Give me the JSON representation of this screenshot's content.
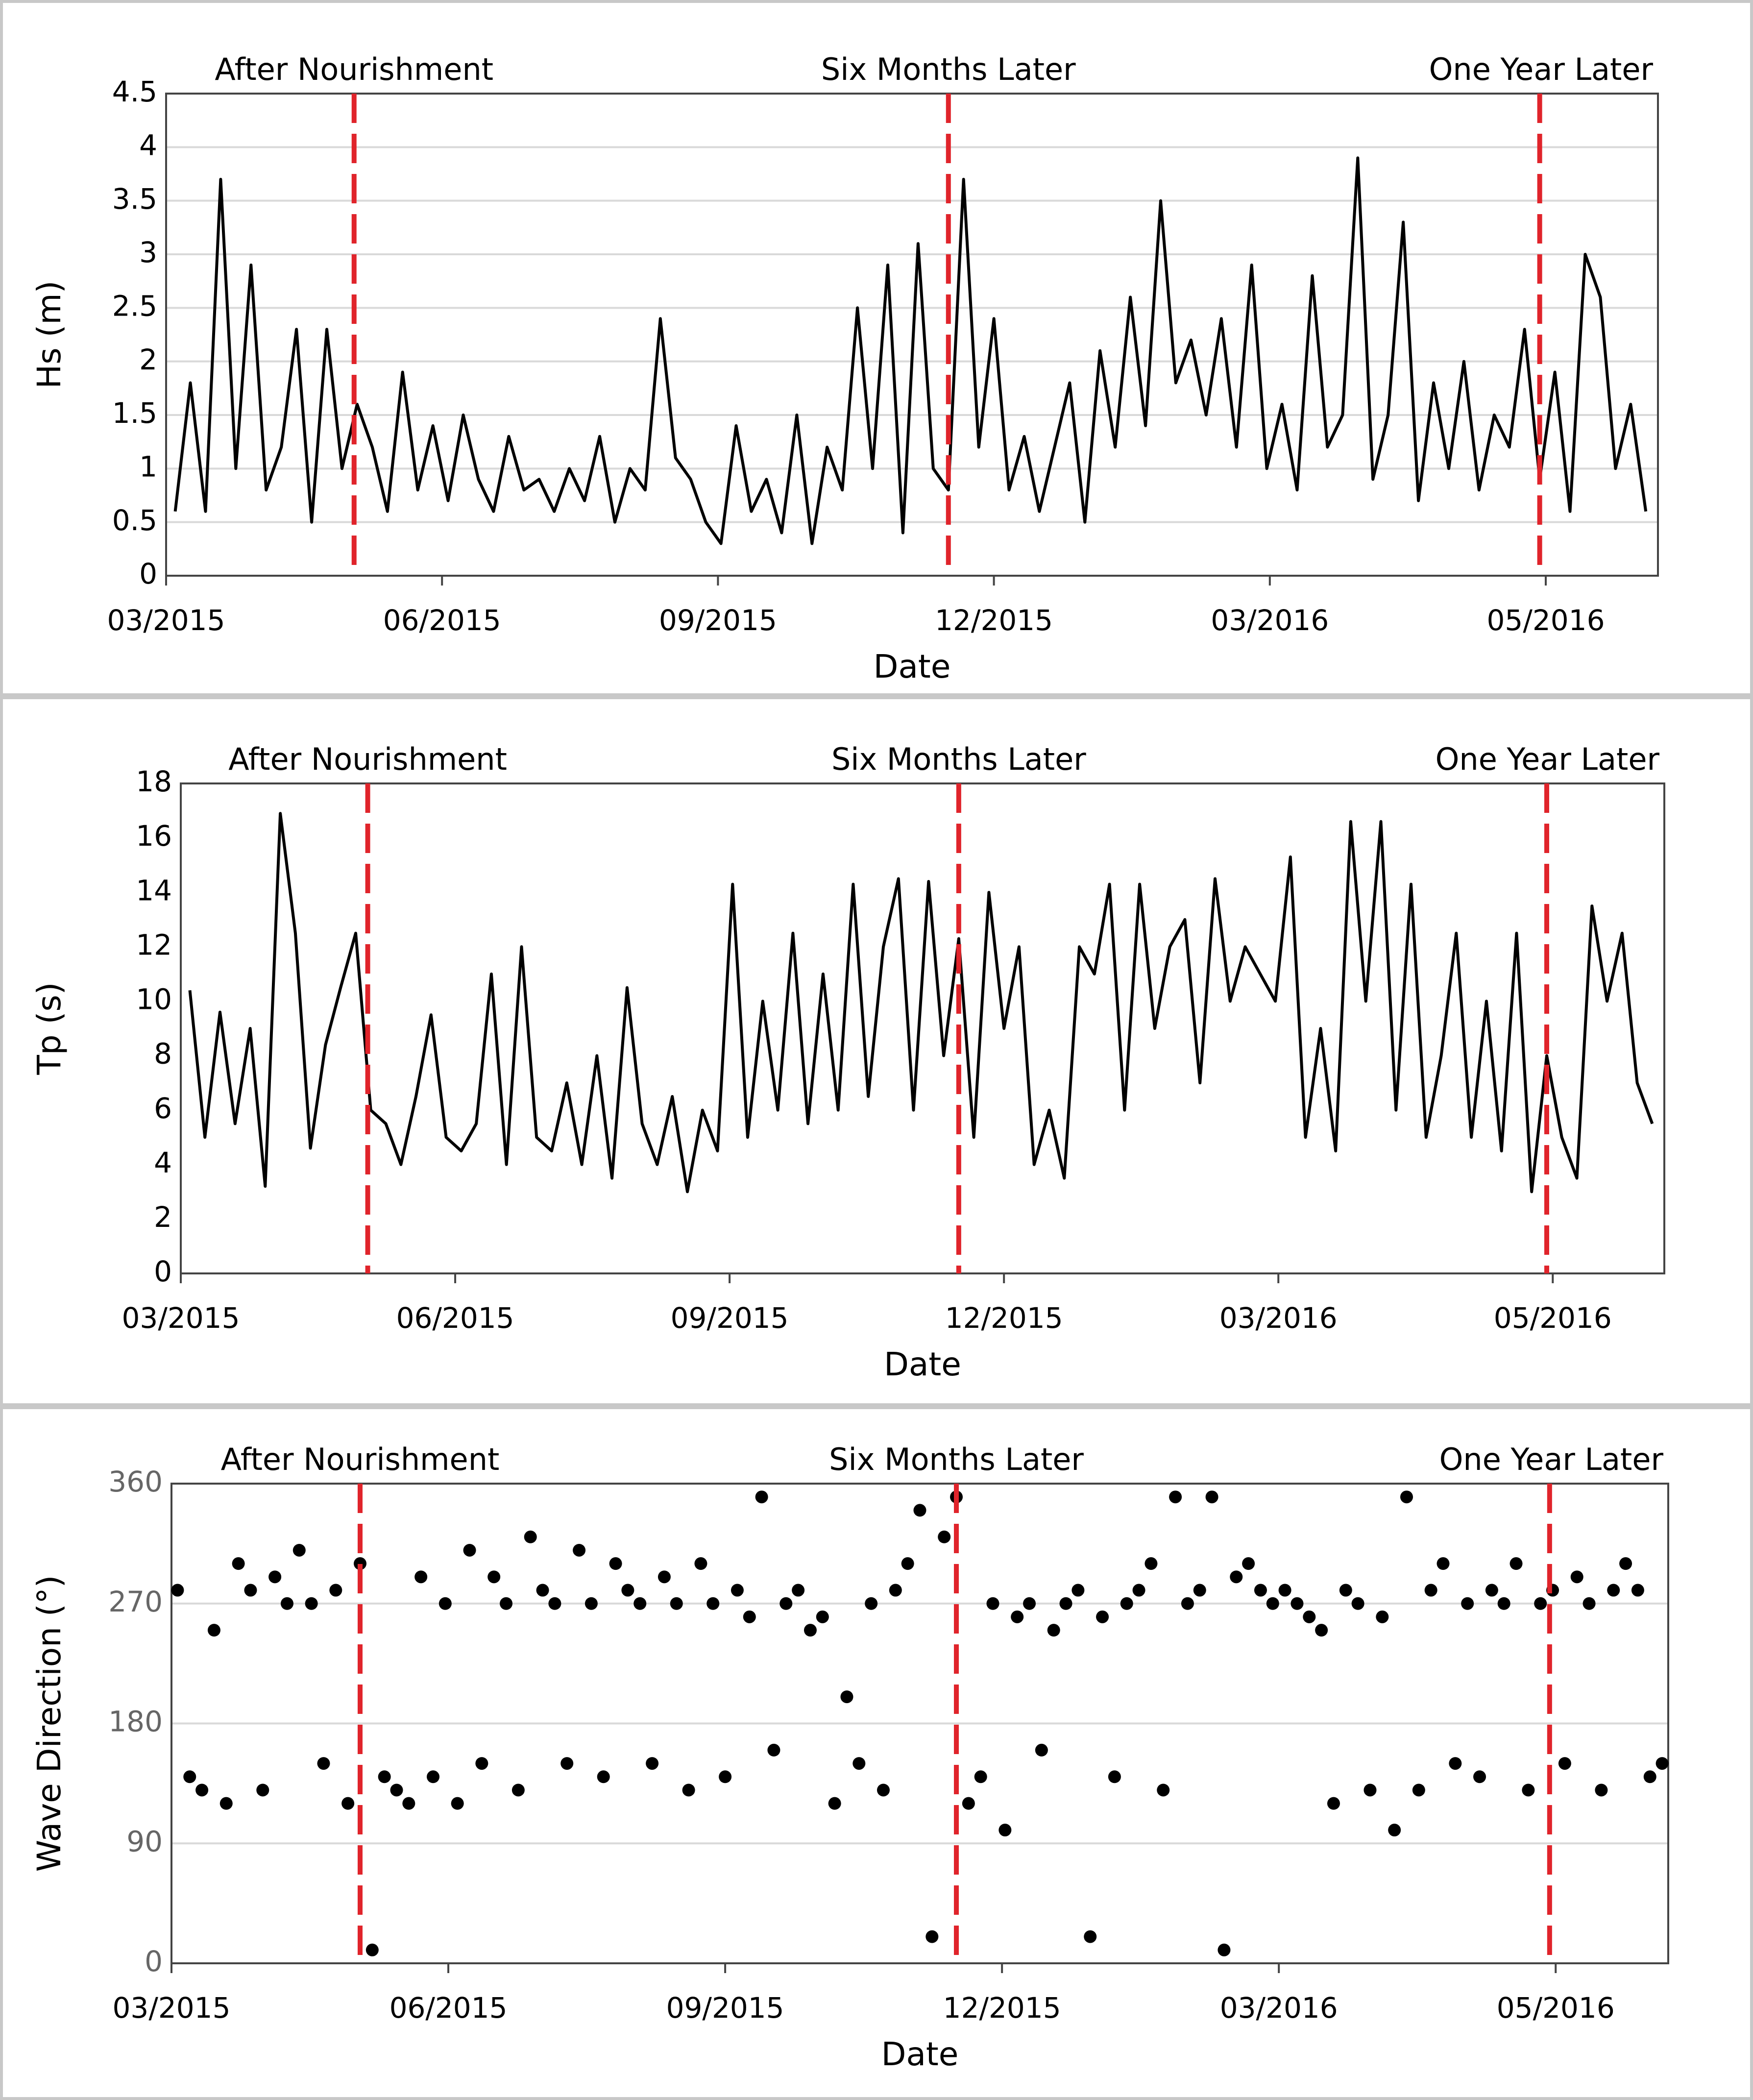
{
  "chart_data": [
    {
      "type": "line",
      "xlabel": "Date",
      "ylabel": "Hs (m)",
      "color": "#000000",
      "grid": true,
      "xlim": [
        0,
        492
      ],
      "xticks": [
        {
          "value": 0,
          "label": "03/2015"
        },
        {
          "value": 91,
          "label": "06/2015"
        },
        {
          "value": 182,
          "label": "09/2015"
        },
        {
          "value": 273,
          "label": "12/2015"
        },
        {
          "value": 364,
          "label": "03/2016"
        },
        {
          "value": 455,
          "label": "05/2016"
        }
      ],
      "ylim": [
        0,
        4.5
      ],
      "yticks": [
        0,
        0.5,
        1,
        1.5,
        2,
        2.5,
        3,
        3.5,
        4,
        4.5
      ],
      "annotation_color": "#e0242b",
      "annotations": [
        {
          "text": "After Nourishment",
          "x": 62
        },
        {
          "text": "Six Months Later",
          "x": 258
        },
        {
          "text": "One Year Later",
          "x": 453
        }
      ],
      "x": [
        3,
        8,
        13,
        18,
        23,
        28,
        33,
        38,
        43,
        48,
        53,
        58,
        63,
        68,
        73,
        78,
        83,
        88,
        93,
        98,
        103,
        108,
        113,
        118,
        123,
        128,
        133,
        138,
        143,
        148,
        153,
        158,
        163,
        168,
        173,
        178,
        183,
        188,
        193,
        198,
        203,
        208,
        213,
        218,
        223,
        228,
        233,
        238,
        243,
        248,
        253,
        258,
        263,
        268,
        273,
        278,
        283,
        288,
        293,
        298,
        303,
        308,
        313,
        318,
        323,
        328,
        333,
        338,
        343,
        348,
        353,
        358,
        363,
        368,
        373,
        378,
        383,
        388,
        393,
        398,
        403,
        408,
        413,
        418,
        423,
        428,
        433,
        438,
        443,
        448,
        453,
        458,
        463,
        468,
        473,
        478,
        483,
        488
      ],
      "values": [
        0.6,
        1.8,
        0.6,
        3.7,
        1.0,
        2.9,
        0.8,
        1.2,
        2.3,
        0.5,
        2.3,
        1.0,
        1.6,
        1.2,
        0.6,
        1.9,
        0.8,
        1.4,
        0.7,
        1.5,
        0.9,
        0.6,
        1.3,
        0.8,
        0.9,
        0.6,
        1.0,
        0.7,
        1.3,
        0.5,
        1.0,
        0.8,
        2.4,
        1.1,
        0.9,
        0.5,
        0.3,
        1.4,
        0.6,
        0.9,
        0.4,
        1.5,
        0.3,
        1.2,
        0.8,
        2.5,
        1.0,
        2.9,
        0.4,
        3.1,
        1.0,
        0.8,
        3.7,
        1.2,
        2.4,
        0.8,
        1.3,
        0.6,
        1.2,
        1.8,
        0.5,
        2.1,
        1.2,
        2.6,
        1.4,
        3.5,
        1.8,
        2.2,
        1.5,
        2.4,
        1.2,
        2.9,
        1.0,
        1.6,
        0.8,
        2.8,
        1.2,
        1.5,
        3.9,
        0.9,
        1.5,
        3.3,
        0.7,
        1.8,
        1.0,
        2.0,
        0.8,
        1.5,
        1.2,
        2.3,
        0.9,
        1.9,
        0.6,
        3.0,
        2.6,
        1.0,
        1.6,
        0.6
      ]
    },
    {
      "type": "line",
      "xlabel": "Date",
      "ylabel": "Tp (s)",
      "color": "#000000",
      "grid": false,
      "xlim": [
        0,
        492
      ],
      "xticks": [
        {
          "value": 0,
          "label": "03/2015"
        },
        {
          "value": 91,
          "label": "06/2015"
        },
        {
          "value": 182,
          "label": "09/2015"
        },
        {
          "value": 273,
          "label": "12/2015"
        },
        {
          "value": 364,
          "label": "03/2016"
        },
        {
          "value": 455,
          "label": "05/2016"
        }
      ],
      "ylim": [
        0,
        18
      ],
      "yticks": [
        0,
        2,
        4,
        6,
        8,
        10,
        12,
        14,
        16,
        18
      ],
      "annotation_color": "#e0242b",
      "annotations": [
        {
          "text": "After Nourishment",
          "x": 62
        },
        {
          "text": "Six Months Later",
          "x": 258
        },
        {
          "text": "One Year Later",
          "x": 453
        }
      ],
      "x": [
        3,
        8,
        13,
        18,
        23,
        28,
        33,
        38,
        43,
        48,
        53,
        58,
        63,
        68,
        73,
        78,
        83,
        88,
        93,
        98,
        103,
        108,
        113,
        118,
        123,
        128,
        133,
        138,
        143,
        148,
        153,
        158,
        163,
        168,
        173,
        178,
        183,
        188,
        193,
        198,
        203,
        208,
        213,
        218,
        223,
        228,
        233,
        238,
        243,
        248,
        253,
        258,
        263,
        268,
        273,
        278,
        283,
        288,
        293,
        298,
        303,
        308,
        313,
        318,
        323,
        328,
        333,
        338,
        343,
        348,
        353,
        358,
        363,
        368,
        373,
        378,
        383,
        388,
        393,
        398,
        403,
        408,
        413,
        418,
        423,
        428,
        433,
        438,
        443,
        448,
        453,
        458,
        463,
        468,
        473,
        478,
        483,
        488
      ],
      "values": [
        10.4,
        5.0,
        9.6,
        5.5,
        9.0,
        3.2,
        16.9,
        12.5,
        4.6,
        8.4,
        10.5,
        12.5,
        6.0,
        5.5,
        4.0,
        6.5,
        9.5,
        5.0,
        4.5,
        5.5,
        11.0,
        4.0,
        12.0,
        5.0,
        4.5,
        7.0,
        4.0,
        8.0,
        3.5,
        10.5,
        5.5,
        4.0,
        6.5,
        3.0,
        6.0,
        4.5,
        14.3,
        5.0,
        10.0,
        6.0,
        12.5,
        5.5,
        11.0,
        6.0,
        14.3,
        6.5,
        12.0,
        14.5,
        6.0,
        14.4,
        8.0,
        12.3,
        5.0,
        14.0,
        9.0,
        12.0,
        4.0,
        6.0,
        3.5,
        12.0,
        11.0,
        14.3,
        6.0,
        14.3,
        9.0,
        12.0,
        13.0,
        7.0,
        14.5,
        10.0,
        12.0,
        11.0,
        10.0,
        15.3,
        5.0,
        9.0,
        4.5,
        16.6,
        10.0,
        16.6,
        6.0,
        14.3,
        5.0,
        8.0,
        12.5,
        5.0,
        10.0,
        4.5,
        12.5,
        3.0,
        8.0,
        5.0,
        3.5,
        13.5,
        10.0,
        12.5,
        7.0,
        5.5
      ]
    },
    {
      "type": "scatter",
      "xlabel": "Date",
      "ylabel": "Wave Direction (°)",
      "color": "#000000",
      "grid": true,
      "xlim": [
        0,
        492
      ],
      "xticks": [
        {
          "value": 0,
          "label": "03/2015"
        },
        {
          "value": 91,
          "label": "06/2015"
        },
        {
          "value": 182,
          "label": "09/2015"
        },
        {
          "value": 273,
          "label": "12/2015"
        },
        {
          "value": 364,
          "label": "03/2016"
        },
        {
          "value": 455,
          "label": "05/2016"
        }
      ],
      "ylim": [
        0,
        360
      ],
      "yticks": [
        0,
        90,
        180,
        270,
        360
      ],
      "annotation_color": "#e0242b",
      "annotations": [
        {
          "text": "After Nourishment",
          "x": 62
        },
        {
          "text": "Six Months Later",
          "x": 258
        },
        {
          "text": "One Year Later",
          "x": 453
        }
      ],
      "x": [
        2,
        6,
        10,
        14,
        18,
        22,
        26,
        30,
        34,
        38,
        42,
        46,
        50,
        54,
        58,
        62,
        66,
        70,
        74,
        78,
        82,
        86,
        90,
        94,
        98,
        102,
        106,
        110,
        114,
        118,
        122,
        126,
        130,
        134,
        138,
        142,
        146,
        150,
        154,
        158,
        162,
        166,
        170,
        174,
        178,
        182,
        186,
        190,
        194,
        198,
        202,
        206,
        210,
        214,
        218,
        222,
        226,
        230,
        234,
        238,
        242,
        246,
        250,
        254,
        258,
        262,
        266,
        270,
        274,
        278,
        282,
        286,
        290,
        294,
        298,
        302,
        306,
        310,
        314,
        318,
        322,
        326,
        330,
        334,
        338,
        342,
        346,
        350,
        354,
        358,
        362,
        366,
        370,
        374,
        378,
        382,
        386,
        390,
        394,
        398,
        402,
        406,
        410,
        414,
        418,
        422,
        426,
        430,
        434,
        438,
        442,
        446,
        450,
        454,
        458,
        462,
        466,
        470,
        474,
        478,
        482,
        486,
        490
      ],
      "values": [
        280,
        140,
        130,
        250,
        120,
        300,
        280,
        130,
        290,
        270,
        310,
        270,
        150,
        280,
        120,
        300,
        10,
        140,
        130,
        120,
        290,
        140,
        270,
        120,
        310,
        150,
        290,
        270,
        130,
        320,
        280,
        270,
        150,
        310,
        270,
        140,
        300,
        280,
        270,
        150,
        290,
        270,
        130,
        300,
        270,
        140,
        280,
        260,
        350,
        160,
        270,
        280,
        250,
        260,
        120,
        200,
        150,
        270,
        130,
        280,
        300,
        340,
        20,
        320,
        350,
        120,
        140,
        270,
        100,
        260,
        270,
        160,
        250,
        270,
        280,
        20,
        260,
        140,
        270,
        280,
        300,
        130,
        350,
        270,
        280,
        350,
        10,
        290,
        300,
        280,
        270,
        280,
        270,
        260,
        250,
        120,
        280,
        270,
        130,
        260,
        100,
        350,
        130,
        280,
        300,
        150,
        270,
        140,
        280,
        270,
        300,
        130,
        270,
        280,
        150,
        290,
        270,
        130,
        280,
        300,
        280,
        140,
        150
      ]
    }
  ]
}
